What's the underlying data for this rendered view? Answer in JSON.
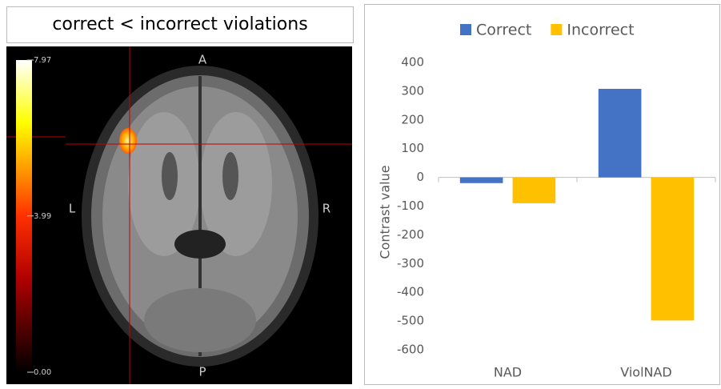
{
  "figure_title": "correct < incorrect violations",
  "brain_view": {
    "orientation_labels": {
      "anterior": "A",
      "posterior": "P",
      "left": "L",
      "right": "R"
    },
    "colorbar_lim": [
      0,
      7.97
    ],
    "colorbar_ticks": [
      7.97,
      3.99,
      {
        "value": 0,
        "label": "0.00"
      }
    ]
  },
  "chart_data": {
    "type": "bar",
    "categories": [
      "NAD",
      "ViolNAD"
    ],
    "series": [
      {
        "name": "Correct",
        "color": "#4472c4",
        "values": [
          -20,
          308
        ]
      },
      {
        "name": "Incorrect",
        "color": "#ffc000",
        "values": [
          -90,
          -498
        ]
      }
    ],
    "y_label": "Contrast value",
    "ylim": [
      -600,
      400
    ],
    "yticks": [
      400,
      300,
      200,
      100,
      0,
      -100,
      -200,
      -300,
      -400,
      -500,
      -600
    ],
    "legend": "top",
    "grid": false
  }
}
